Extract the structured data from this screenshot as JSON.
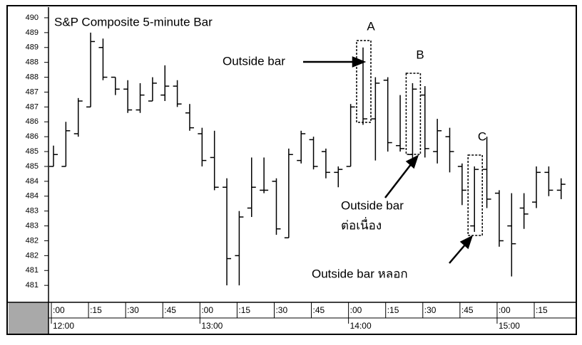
{
  "chart_data": {
    "type": "ohlc",
    "title": "S&P Composite 5-minute Bar",
    "color": "#000000",
    "categories": [
      ":00",
      null,
      null,
      ":15",
      null,
      null,
      ":30",
      null,
      null,
      ":45",
      null,
      null,
      ":00",
      null,
      null,
      ":15",
      null,
      null,
      ":30",
      null,
      null,
      ":45",
      null,
      null,
      ":00",
      null,
      null,
      ":15",
      null,
      null,
      ":30",
      null,
      null,
      ":45",
      null,
      null,
      ":00",
      null,
      null,
      ":15",
      null,
      null
    ],
    "hour_labels": [
      "12:00",
      "13:00",
      "14:00",
      "15:00"
    ],
    "open": [
      485.0,
      485.0,
      486.1,
      487.0,
      489.0,
      488.0,
      487.6,
      486.9,
      487.2,
      487.4,
      487.7,
      486.8,
      486.1,
      485.3,
      484.3,
      482.0,
      483.6,
      484.2,
      484.5,
      482.6,
      485.2,
      485.9,
      485.5,
      484.8,
      485.0,
      488.5,
      486.6,
      487.9,
      485.7,
      485.4,
      487.4,
      485.5,
      486.0,
      485.0,
      483.0,
      484.9,
      484.1,
      483.0,
      483.6,
      483.8,
      484.8,
      484.2
    ],
    "high": [
      485.7,
      486.5,
      487.3,
      489.5,
      489.3,
      488.0,
      487.9,
      487.8,
      488.0,
      488.4,
      487.9,
      487.1,
      486.3,
      486.2,
      484.6,
      483.5,
      485.3,
      485.3,
      484.6,
      485.6,
      486.2,
      486.0,
      485.6,
      485.0,
      487.1,
      489.0,
      488.0,
      488.0,
      487.4,
      487.8,
      487.7,
      486.6,
      486.3,
      485.1,
      485.0,
      486.0,
      484.2,
      484.1,
      484.1,
      485.0,
      485.0,
      484.6
    ],
    "low": [
      485.0,
      485.0,
      486.0,
      487.0,
      487.9,
      487.4,
      486.8,
      486.8,
      487.2,
      487.2,
      487.0,
      486.2,
      485.0,
      484.2,
      481.0,
      481.0,
      483.3,
      484.1,
      482.7,
      482.6,
      485.1,
      484.9,
      484.6,
      484.3,
      485.0,
      486.4,
      485.2,
      485.5,
      485.5,
      485.2,
      485.3,
      485.1,
      484.8,
      483.7,
      482.8,
      483.6,
      482.3,
      481.3,
      482.9,
      483.6,
      484.0,
      483.9
    ],
    "close": [
      485.4,
      486.2,
      487.2,
      489.2,
      488.0,
      487.6,
      486.9,
      487.4,
      487.8,
      487.7,
      487.1,
      486.3,
      485.2,
      484.3,
      481.9,
      483.3,
      484.3,
      484.2,
      482.9,
      485.4,
      486.1,
      485.0,
      484.8,
      484.9,
      487.0,
      486.6,
      487.8,
      485.8,
      485.6,
      487.6,
      485.6,
      486.2,
      485.5,
      484.2,
      484.9,
      483.9,
      482.5,
      482.4,
      483.4,
      484.8,
      484.2,
      484.4
    ],
    "ylim": [
      480.43,
      490.31
    ],
    "yticks": [
      490,
      {
        "value": 489.5,
        "label": "489"
      },
      489,
      {
        "value": 488.5,
        "label": "488"
      },
      488,
      {
        "value": 487.5,
        "label": "487"
      },
      487,
      {
        "value": 486.5,
        "label": "486"
      },
      486,
      {
        "value": 485.5,
        "label": "485"
      },
      485,
      {
        "value": 484.5,
        "label": "484"
      },
      484,
      {
        "value": 483.5,
        "label": "483"
      },
      483,
      {
        "value": 482.5,
        "label": "482"
      },
      482,
      {
        "value": 481.5,
        "label": "481"
      },
      481
    ],
    "annotations": {
      "a": "A",
      "b": "B",
      "c": "C",
      "outside_bar": "Outside bar",
      "continued_1": "Outside bar",
      "continued_2": "ต่อเนื่อง",
      "false_bar": "Outside bar หลอก"
    }
  }
}
